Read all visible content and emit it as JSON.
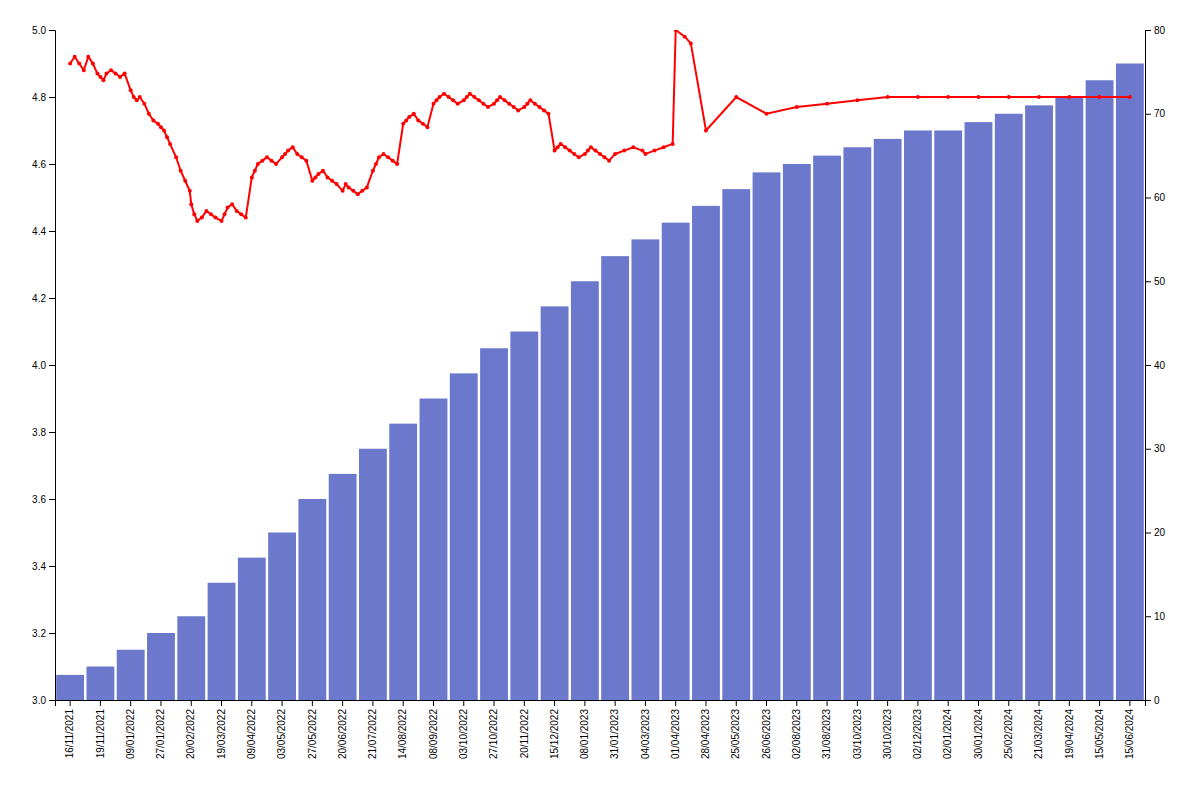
{
  "chart_data": {
    "type": "bar",
    "categories": [
      "16/11/2021",
      "19/11/2021",
      "09/01/2022",
      "27/01/2022",
      "20/02/2022",
      "19/03/2022",
      "09/04/2022",
      "03/05/2022",
      "27/05/2022",
      "20/06/2022",
      "21/07/2022",
      "14/08/2022",
      "08/09/2022",
      "03/10/2022",
      "27/10/2022",
      "20/11/2022",
      "15/12/2022",
      "08/01/2023",
      "31/01/2023",
      "04/03/2023",
      "01/04/2023",
      "28/04/2023",
      "25/05/2023",
      "26/06/2023",
      "02/08/2023",
      "31/08/2023",
      "03/10/2023",
      "30/10/2023",
      "02/12/2023",
      "02/01/2024",
      "30/01/2024",
      "25/02/2024",
      "21/03/2024",
      "19/04/2024",
      "15/05/2024",
      "15/06/2024"
    ],
    "series": [
      {
        "type": "bar",
        "color": "#6b78cc",
        "axis": "y2",
        "values": [
          3,
          4,
          6,
          8,
          10,
          14,
          17,
          20,
          24,
          27,
          30,
          33,
          36,
          39,
          42,
          44,
          47,
          50,
          53,
          55,
          57,
          59,
          61,
          63,
          64,
          65,
          66,
          67,
          68,
          68,
          69,
          70,
          71,
          72,
          74,
          76
        ]
      },
      {
        "type": "line",
        "color": "#ff0000",
        "marker": "circle",
        "x": [
          0,
          0.15,
          0.3,
          0.45,
          0.6,
          0.75,
          0.9,
          1.0,
          1.1,
          1.2,
          1.35,
          1.5,
          1.65,
          1.8,
          2.0,
          2.1,
          2.2,
          2.3,
          2.45,
          2.6,
          2.75,
          2.9,
          3.0,
          3.1,
          3.2,
          3.3,
          3.5,
          3.65,
          3.8,
          3.95,
          4.0,
          4.1,
          4.2,
          4.35,
          4.5,
          4.65,
          4.8,
          5.0,
          5.1,
          5.2,
          5.35,
          5.5,
          5.65,
          5.8,
          6.0,
          6.1,
          6.2,
          6.35,
          6.5,
          6.65,
          6.8,
          7.0,
          7.1,
          7.2,
          7.35,
          7.5,
          7.65,
          7.8,
          8.0,
          8.1,
          8.2,
          8.35,
          8.5,
          8.65,
          8.8,
          9.0,
          9.1,
          9.2,
          9.35,
          9.5,
          9.65,
          9.8,
          10.0,
          10.1,
          10.2,
          10.35,
          10.5,
          10.65,
          10.8,
          11.0,
          11.1,
          11.2,
          11.35,
          11.5,
          11.65,
          11.8,
          12.0,
          12.1,
          12.2,
          12.35,
          12.5,
          12.65,
          12.8,
          13.0,
          13.1,
          13.2,
          13.35,
          13.5,
          13.65,
          13.8,
          14.0,
          14.1,
          14.2,
          14.35,
          14.5,
          14.65,
          14.8,
          15.0,
          15.1,
          15.2,
          15.35,
          15.5,
          15.65,
          15.8,
          16.0,
          16.1,
          16.2,
          16.35,
          16.5,
          16.65,
          16.8,
          17.0,
          17.1,
          17.2,
          17.35,
          17.5,
          17.65,
          17.8,
          18.0,
          18.3,
          18.6,
          18.9,
          19.0,
          19.3,
          19.6,
          19.9,
          20.0,
          20.3,
          20.5,
          21.0,
          22.0,
          23.0,
          24.0,
          25.0,
          26.0,
          27.0,
          28.0,
          29.0,
          30.0,
          31.0,
          32.0,
          33.0,
          34.0,
          35.0
        ],
        "values": [
          4.9,
          4.92,
          4.9,
          4.88,
          4.92,
          4.9,
          4.87,
          4.86,
          4.85,
          4.87,
          4.88,
          4.87,
          4.86,
          4.87,
          4.82,
          4.8,
          4.79,
          4.8,
          4.78,
          4.75,
          4.73,
          4.72,
          4.71,
          4.7,
          4.68,
          4.66,
          4.62,
          4.58,
          4.55,
          4.52,
          4.48,
          4.45,
          4.43,
          4.44,
          4.46,
          4.45,
          4.44,
          4.43,
          4.45,
          4.47,
          4.48,
          4.46,
          4.45,
          4.44,
          4.56,
          4.58,
          4.6,
          4.61,
          4.62,
          4.61,
          4.6,
          4.62,
          4.63,
          4.64,
          4.65,
          4.63,
          4.62,
          4.61,
          4.55,
          4.56,
          4.57,
          4.58,
          4.56,
          4.55,
          4.54,
          4.52,
          4.54,
          4.53,
          4.52,
          4.51,
          4.52,
          4.53,
          4.58,
          4.6,
          4.62,
          4.63,
          4.62,
          4.61,
          4.6,
          4.72,
          4.73,
          4.74,
          4.75,
          4.73,
          4.72,
          4.71,
          4.78,
          4.79,
          4.8,
          4.81,
          4.8,
          4.79,
          4.78,
          4.79,
          4.8,
          4.81,
          4.8,
          4.79,
          4.78,
          4.77,
          4.78,
          4.79,
          4.8,
          4.79,
          4.78,
          4.77,
          4.76,
          4.77,
          4.78,
          4.79,
          4.78,
          4.77,
          4.76,
          4.75,
          4.64,
          4.65,
          4.66,
          4.65,
          4.64,
          4.63,
          4.62,
          4.63,
          4.64,
          4.65,
          4.64,
          4.63,
          4.62,
          4.61,
          4.63,
          4.64,
          4.65,
          4.64,
          4.63,
          4.64,
          4.65,
          4.66,
          5.0,
          4.98,
          4.96,
          4.7,
          4.8,
          4.75,
          4.77,
          4.78,
          4.79,
          4.8,
          4.8,
          4.8,
          4.8,
          4.8,
          4.8,
          4.8,
          4.8,
          4.8
        ]
      }
    ],
    "ylim": [
      3.0,
      5.0
    ],
    "yticks": [
      {
        "value": 3.0,
        "label": "3.0"
      },
      3.2,
      3.4,
      3.6,
      3.8,
      {
        "value": 4.0,
        "label": "4.0"
      },
      4.2,
      4.4,
      4.6,
      4.8,
      {
        "value": 5.0,
        "label": "5.0"
      }
    ],
    "y2lim": [
      0,
      80
    ],
    "y2ticks": [
      0,
      10,
      20,
      30,
      40,
      50,
      60,
      70,
      80
    ],
    "grid": false
  }
}
